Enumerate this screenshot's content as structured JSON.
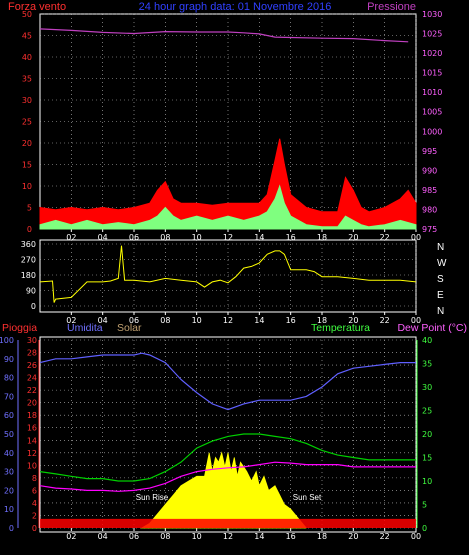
{
  "header": {
    "left_label": "Forza vento",
    "title": "24 hour graph data: 01 Novembre 2016",
    "right_label": "Pressione"
  },
  "panel_bottom": {
    "labels": {
      "rain": "Pioggia",
      "humidity": "Umidita",
      "solar": "Solar",
      "temperature": "Temperatura",
      "dewpoint": "Dew Point (°C)"
    },
    "annotations": {
      "sunrise": "Sun Rise",
      "sunset": "Sun Set"
    }
  },
  "colors": {
    "wind": "#ff0000",
    "gust": "#7fff7f",
    "pressure": "#c040c0",
    "direction": "#ffff00",
    "humidity": "#6060ff",
    "temperature": "#00d000",
    "dewpoint": "#ff00ff",
    "solar": "#ffff00",
    "rain": "#ff0000",
    "left_axis_red": "#ff3030",
    "left_axis_blue": "#7070ff",
    "right_axis_green": "#40ff40",
    "right_axis_magenta": "#ff60ff",
    "grid": "#c0c0c0",
    "axis_white": "#ffffff"
  },
  "chart_data": [
    {
      "type": "line",
      "name_ref": "wind_pressure",
      "x_ticks": [
        "02",
        "04",
        "06",
        "08",
        "10",
        "12",
        "14",
        "16",
        "18",
        "20",
        "22",
        "00"
      ],
      "y_left_ticks": [
        0,
        5,
        10,
        15,
        20,
        25,
        30,
        35,
        40,
        45,
        50
      ],
      "y_left_range": [
        0,
        50
      ],
      "y_right_ticks": [
        975,
        980,
        985,
        990,
        995,
        1000,
        1005,
        1010,
        1015,
        1020,
        1025,
        1030
      ],
      "y_right_range": [
        975,
        1030
      ],
      "series": [
        {
          "key": "pressure",
          "axis": "right",
          "x": [
            0,
            2,
            4,
            6,
            8,
            10,
            12,
            13,
            14,
            15,
            16,
            18,
            20,
            22,
            23.5
          ],
          "values": [
            1026.2,
            1025.8,
            1025.3,
            1025.0,
            1025.5,
            1025.4,
            1025.4,
            1025.2,
            1024.9,
            1024.1,
            1024.0,
            1023.8,
            1023.7,
            1023.2,
            1022.9
          ]
        },
        {
          "key": "wind",
          "axis": "left",
          "x": [
            0,
            1,
            2,
            3,
            4,
            5,
            6,
            7,
            7.5,
            8,
            8.5,
            9,
            10,
            11,
            12,
            13,
            14,
            14.5,
            15,
            15.3,
            15.6,
            16,
            17,
            18,
            19,
            19.5,
            20,
            20.5,
            21,
            22,
            23,
            23.5,
            24
          ],
          "values": [
            5,
            4.5,
            5,
            4.5,
            5,
            4.5,
            5,
            6,
            9,
            11,
            7,
            6,
            6,
            5.5,
            6,
            6,
            6,
            8,
            16,
            21,
            15,
            8,
            5,
            4,
            4,
            12,
            9,
            5,
            4,
            5,
            7,
            9,
            6
          ]
        },
        {
          "key": "gust",
          "axis": "left",
          "x": [
            0,
            1,
            2,
            3,
            4,
            5,
            6,
            7,
            7.5,
            8,
            8.5,
            9,
            10,
            11,
            12,
            13,
            14,
            14.5,
            15,
            15.3,
            15.6,
            16,
            17,
            18,
            19,
            19.5,
            20,
            20.5,
            21,
            22,
            23,
            24
          ],
          "values": [
            1,
            2,
            1,
            2,
            1,
            1.5,
            1,
            2,
            3,
            5,
            3,
            2,
            3,
            2,
            3,
            2,
            3,
            4,
            7,
            10,
            6,
            3,
            1,
            0.5,
            0.5,
            3,
            2,
            1,
            0.5,
            1,
            2,
            1
          ]
        }
      ]
    },
    {
      "type": "line",
      "name_ref": "direction",
      "x_ticks": [
        "02",
        "04",
        "06",
        "08",
        "10",
        "12",
        "14",
        "16",
        "18",
        "20",
        "22",
        "00"
      ],
      "y_left_ticks": [
        0,
        90,
        180,
        270,
        360
      ],
      "y_left_range": [
        0,
        360
      ],
      "y_right_ticks": [
        "N",
        "W",
        "S",
        "E",
        "N"
      ],
      "series": [
        {
          "key": "direction",
          "x": [
            0,
            0.8,
            0.9,
            1,
            2,
            3,
            4,
            4.5,
            5,
            5.2,
            5.4,
            6,
            7,
            8,
            9,
            10,
            10.5,
            11,
            11.5,
            12,
            12.5,
            13,
            13.5,
            14,
            14.5,
            15,
            15.3,
            15.6,
            16,
            17,
            17.5,
            18,
            19,
            20,
            21,
            22,
            23,
            24
          ],
          "values": [
            140,
            145,
            20,
            40,
            50,
            140,
            140,
            145,
            160,
            350,
            150,
            150,
            140,
            160,
            150,
            140,
            110,
            140,
            150,
            135,
            170,
            220,
            230,
            250,
            300,
            320,
            320,
            300,
            210,
            210,
            200,
            170,
            170,
            160,
            150,
            150,
            150,
            140
          ]
        }
      ]
    },
    {
      "type": "line",
      "name_ref": "humidity_temp",
      "x_ticks": [
        "02",
        "04",
        "06",
        "08",
        "10",
        "12",
        "14",
        "16",
        "18",
        "20",
        "22",
        "00"
      ],
      "y_left_red_ticks": [
        0,
        2,
        4,
        6,
        8,
        10,
        12,
        14,
        16,
        18,
        20,
        22,
        24,
        26,
        28,
        30
      ],
      "y_left_blue_ticks": [
        0,
        10,
        20,
        30,
        40,
        50,
        60,
        70,
        80,
        90,
        100
      ],
      "y_right_ticks": [
        0,
        5,
        10,
        15,
        20,
        25,
        30,
        35,
        40
      ],
      "y_right_range": [
        0,
        40
      ],
      "series": [
        {
          "key": "humidity",
          "axis": "left_blue",
          "x": [
            0,
            1,
            2,
            3,
            4,
            5,
            6,
            6.5,
            7,
            8,
            9,
            10,
            11,
            12,
            13,
            14,
            15,
            16,
            17,
            18,
            19,
            20,
            21,
            22,
            23,
            24
          ],
          "values": [
            88,
            90,
            90,
            91,
            92,
            92,
            92,
            93,
            92,
            88,
            79,
            72,
            66,
            63,
            66,
            68,
            68,
            68,
            70,
            75,
            82,
            85,
            86,
            87,
            88,
            88
          ]
        },
        {
          "key": "temperature",
          "axis": "right",
          "x": [
            0,
            1,
            2,
            3,
            4,
            5,
            6,
            7,
            8,
            9,
            10,
            11,
            12,
            13,
            14,
            15,
            16,
            17,
            18,
            19,
            20,
            21,
            22,
            23,
            24
          ],
          "values": [
            12,
            11.5,
            11,
            10.5,
            10.5,
            10,
            10,
            10.5,
            12,
            14,
            17,
            18.5,
            19.5,
            20,
            20,
            19.5,
            19,
            18,
            16.5,
            15.5,
            15,
            14.5,
            14.5,
            14.5,
            14.5
          ]
        },
        {
          "key": "dewpoint",
          "axis": "right",
          "x": [
            0,
            1,
            2,
            3,
            4,
            5,
            6,
            7,
            8,
            9,
            10,
            11,
            12,
            13,
            14,
            15,
            16,
            17,
            18,
            19,
            20,
            21,
            22,
            23,
            24
          ],
          "values": [
            9,
            8.5,
            8.3,
            8,
            8,
            7.8,
            8,
            8.5,
            9.5,
            11,
            12,
            12.5,
            12.8,
            13,
            13.5,
            14,
            13.8,
            13.5,
            13.5,
            13.5,
            13,
            13,
            13,
            13,
            13
          ]
        },
        {
          "key": "solar",
          "axis": "right",
          "x": [
            6.5,
            7,
            7.5,
            8,
            8.5,
            9,
            9.5,
            10,
            10.5,
            10.8,
            11,
            11.2,
            11.4,
            11.6,
            11.8,
            12,
            12.2,
            12.4,
            12.6,
            12.8,
            13,
            13.2,
            13.5,
            13.8,
            14,
            14.3,
            14.6,
            15,
            15.3,
            15.6,
            16,
            16.5,
            17
          ],
          "values": [
            0,
            1,
            3,
            5,
            7,
            9,
            10,
            11,
            11,
            16,
            12,
            15,
            14,
            16,
            13,
            16,
            12,
            15,
            11,
            14,
            13,
            12,
            10,
            12,
            9,
            11,
            8,
            9,
            7,
            5,
            4,
            2,
            0
          ]
        },
        {
          "key": "rain",
          "axis": "left_red",
          "x": [
            0,
            24
          ],
          "values": [
            0.5,
            0.5
          ]
        }
      ]
    }
  ]
}
